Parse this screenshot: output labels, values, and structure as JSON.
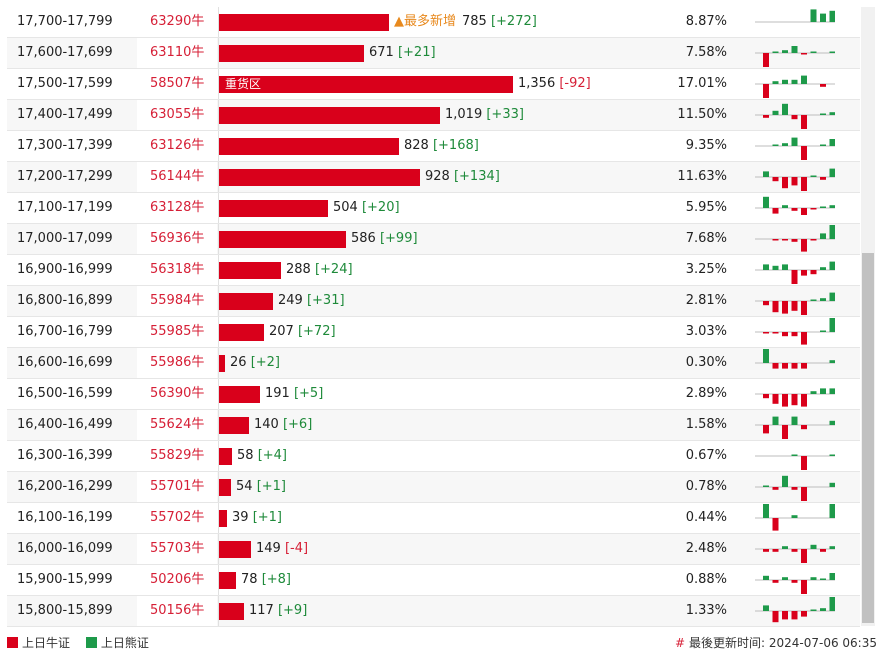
{
  "colors": {
    "bull": "#d9001b",
    "bear": "#1e9a4a",
    "accent_orange": "#e8891d",
    "positive_diff": "#1e8a3a",
    "negative_diff": "#d61f36"
  },
  "max_value": 1356,
  "rows": [
    {
      "range": "17,700-17,799",
      "code": "63290牛",
      "value": 785,
      "value_text": "785",
      "diff": "[+272]",
      "diff_sign": "pos",
      "pct": "8.87%",
      "tag": "▲最多新增",
      "spark": [
        0,
        0,
        0,
        0,
        0,
        0.9,
        0.6,
        0.8
      ]
    },
    {
      "range": "17,600-17,699",
      "code": "63110牛",
      "value": 671,
      "value_text": "671",
      "diff": "[+21]",
      "diff_sign": "pos",
      "pct": "7.58%",
      "tag": "",
      "spark": [
        -1,
        0.1,
        0.2,
        0.5,
        -0.1,
        0.1,
        0,
        0.1
      ]
    },
    {
      "range": "17,500-17,599",
      "code": "58507牛",
      "value": 1356,
      "value_text": "1,356",
      "diff": "[-92]",
      "diff_sign": "neg",
      "pct": "17.01%",
      "tag": "",
      "inner_label": "重货区",
      "spark": [
        -1,
        0.2,
        0.3,
        0.3,
        0.6,
        0,
        -0.2,
        0
      ]
    },
    {
      "range": "17,400-17,499",
      "code": "63055牛",
      "value": 1019,
      "value_text": "1,019",
      "diff": "[+33]",
      "diff_sign": "pos",
      "pct": "11.50%",
      "tag": "",
      "spark": [
        -0.2,
        0.3,
        0.8,
        -0.3,
        -1,
        0,
        0.1,
        0.2
      ]
    },
    {
      "range": "17,300-17,399",
      "code": "63126牛",
      "value": 828,
      "value_text": "828",
      "diff": "[+168]",
      "diff_sign": "pos",
      "pct": "9.35%",
      "tag": "",
      "spark": [
        0,
        0.1,
        0.2,
        0.6,
        -1,
        0,
        0.1,
        0.5
      ]
    },
    {
      "range": "17,200-17,299",
      "code": "56144牛",
      "value": 928,
      "value_text": "928",
      "diff": "[+134]",
      "diff_sign": "pos",
      "pct": "11.63%",
      "tag": "",
      "spark": [
        0.4,
        -0.3,
        -0.8,
        -0.6,
        -1,
        0.1,
        -0.2,
        0.6
      ]
    },
    {
      "range": "17,100-17,199",
      "code": "63128牛",
      "value": 504,
      "value_text": "504",
      "diff": "[+20]",
      "diff_sign": "pos",
      "pct": "5.95%",
      "tag": "",
      "spark": [
        0.8,
        -0.4,
        0.2,
        -0.2,
        -0.5,
        -0.1,
        0.1,
        0.2
      ]
    },
    {
      "range": "17,000-17,099",
      "code": "56936牛",
      "value": 586,
      "value_text": "586",
      "diff": "[+99]",
      "diff_sign": "pos",
      "pct": "7.68%",
      "tag": "",
      "spark": [
        0,
        -0.1,
        -0.1,
        -0.2,
        -0.9,
        -0.1,
        0.4,
        1
      ]
    },
    {
      "range": "16,900-16,999",
      "code": "56318牛",
      "value": 288,
      "value_text": "288",
      "diff": "[+24]",
      "diff_sign": "pos",
      "pct": "3.25%",
      "tag": "",
      "spark": [
        0.4,
        0.3,
        0.4,
        -1,
        -0.4,
        -0.3,
        0.2,
        0.6
      ]
    },
    {
      "range": "16,800-16,899",
      "code": "55984牛",
      "value": 249,
      "value_text": "249",
      "diff": "[+31]",
      "diff_sign": "pos",
      "pct": "2.81%",
      "tag": "",
      "spark": [
        -0.3,
        -0.8,
        -0.9,
        -0.7,
        -1,
        0.1,
        0.2,
        0.6
      ]
    },
    {
      "range": "16,700-16,799",
      "code": "55985牛",
      "value": 207,
      "value_text": "207",
      "diff": "[+72]",
      "diff_sign": "pos",
      "pct": "3.03%",
      "tag": "",
      "spark": [
        -0.1,
        -0.1,
        -0.3,
        -0.3,
        -0.9,
        0,
        0.1,
        1
      ]
    },
    {
      "range": "16,600-16,699",
      "code": "55986牛",
      "value": 26,
      "value_text": "26",
      "diff": "[+2]",
      "diff_sign": "pos",
      "pct": "0.30%",
      "tag": "",
      "spark": [
        1,
        -0.4,
        -0.4,
        -0.4,
        -0.4,
        0,
        0,
        0.2
      ]
    },
    {
      "range": "16,500-16,599",
      "code": "56390牛",
      "value": 191,
      "value_text": "191",
      "diff": "[+5]",
      "diff_sign": "pos",
      "pct": "2.89%",
      "tag": "",
      "spark": [
        -0.3,
        -0.7,
        -0.9,
        -0.8,
        -0.9,
        0.2,
        0.4,
        0.4
      ]
    },
    {
      "range": "16,400-16,499",
      "code": "55624牛",
      "value": 140,
      "value_text": "140",
      "diff": "[+6]",
      "diff_sign": "pos",
      "pct": "1.58%",
      "tag": "",
      "spark": [
        -0.6,
        0.6,
        -1,
        0.6,
        -0.3,
        0,
        0,
        0.3
      ]
    },
    {
      "range": "16,300-16,399",
      "code": "55829牛",
      "value": 58,
      "value_text": "58",
      "diff": "[+4]",
      "diff_sign": "pos",
      "pct": "0.67%",
      "tag": "",
      "spark": [
        0,
        0,
        0,
        0.1,
        -1,
        0,
        0,
        0.1
      ]
    },
    {
      "range": "16,200-16,299",
      "code": "55701牛",
      "value": 54,
      "value_text": "54",
      "diff": "[+1]",
      "diff_sign": "pos",
      "pct": "0.78%",
      "tag": "",
      "spark": [
        0.1,
        -0.2,
        0.8,
        -0.2,
        -1,
        0,
        0,
        0.3
      ]
    },
    {
      "range": "16,100-16,199",
      "code": "55702牛",
      "value": 39,
      "value_text": "39",
      "diff": "[+1]",
      "diff_sign": "pos",
      "pct": "0.44%",
      "tag": "",
      "spark": [
        1,
        -0.9,
        0,
        0.2,
        0,
        0,
        0,
        1
      ]
    },
    {
      "range": "16,000-16,099",
      "code": "55703牛",
      "value": 149,
      "value_text": "149",
      "diff": "[-4]",
      "diff_sign": "neg",
      "pct": "2.48%",
      "tag": "",
      "spark": [
        -0.2,
        -0.2,
        0.2,
        -0.2,
        -1,
        0.3,
        -0.2,
        0.2
      ]
    },
    {
      "range": "15,900-15,999",
      "code": "50206牛",
      "value": 78,
      "value_text": "78",
      "diff": "[+8]",
      "diff_sign": "pos",
      "pct": "0.88%",
      "tag": "",
      "spark": [
        0.3,
        -0.2,
        0.2,
        -0.2,
        -1,
        0.2,
        0.1,
        0.5
      ]
    },
    {
      "range": "15,800-15,899",
      "code": "50156牛",
      "value": 117,
      "value_text": "117",
      "diff": "[+9]",
      "diff_sign": "pos",
      "pct": "1.33%",
      "tag": "",
      "spark": [
        0.4,
        -0.8,
        -0.6,
        -0.6,
        -0.4,
        0.1,
        0.2,
        1
      ]
    }
  ],
  "legend": {
    "bull_label": "上日牛证",
    "bear_label": "上日熊证"
  },
  "footer": {
    "hash": "#",
    "update_text": "最後更新时间: 2024-07-06 06:35"
  }
}
